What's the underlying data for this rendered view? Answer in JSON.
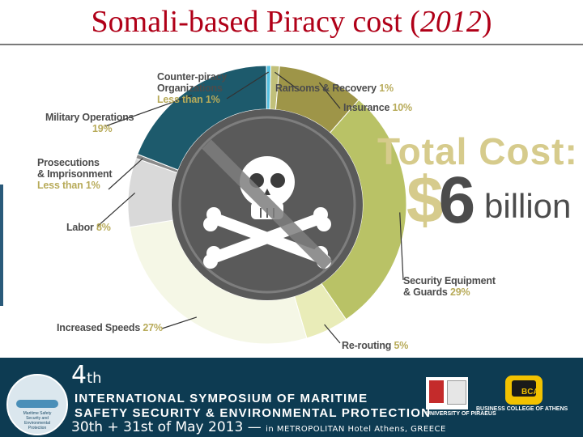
{
  "title": {
    "main": "Somali-based Piracy cost (",
    "year": "2012",
    "close": ")"
  },
  "chart_data": {
    "type": "pie",
    "title": "",
    "headline": {
      "label": "Total Cost:",
      "currency": "$",
      "amount": "6",
      "unit": "billion"
    },
    "categories": [
      "Ransoms & Recovery",
      "Insurance",
      "Security Equipment & Guards",
      "Re-routing",
      "Increased Speeds",
      "Labor",
      "Prosecutions & Imprisonment",
      "Military Operations",
      "Counter-piracy Organizations"
    ],
    "values": [
      1,
      10,
      29,
      5,
      27,
      8,
      0.5,
      19,
      0.5
    ],
    "value_labels": [
      "1%",
      "10%",
      "29%",
      "5%",
      "27%",
      "8%",
      "Less than 1%",
      "19%",
      "Less than 1%"
    ],
    "colors": [
      "#c1c07a",
      "#9e9548",
      "#b9c266",
      "#e9ecb8",
      "#f5f7e6",
      "#d9d9d9",
      "#8a8a8a",
      "#1d5a6c",
      "#54bfe0"
    ],
    "center_icon": "skull-and-crossbones-icon"
  },
  "labels": {
    "counter": {
      "l1": "Counter-piracy",
      "l2": "Organizations",
      "pct": "Less than 1%"
    },
    "ransoms": {
      "name": "Ransoms & Recovery",
      "pct": "1%"
    },
    "insurance": {
      "name": "Insurance",
      "pct": "10%"
    },
    "military": {
      "name": "Military Operations",
      "pct": "19%"
    },
    "prosecutions": {
      "l1": "Prosecutions",
      "l2": "& Imprisonment",
      "pct": "Less than 1%"
    },
    "labor": {
      "name": "Labor",
      "pct": "8%"
    },
    "security": {
      "l1": "Security Equipment",
      "l2": "& Guards",
      "pct": "29%"
    },
    "speeds": {
      "name": "Increased Speeds",
      "pct": "27%"
    },
    "rerouting": {
      "name": "Re-routing",
      "pct": "5%"
    }
  },
  "footer": {
    "edition": "4",
    "edition_suffix": "th",
    "line1": "INTERNATIONAL SYMPOSIUM OF MARITIME",
    "line2": "SAFETY SECURITY & ENVIRONMENTAL PROTECTION",
    "dates": "30th + 31st of May 2013 —",
    "venue": "in METROPOLITAN Hotel Athens, GREECE",
    "logo_left_text": "Maritime Safety Security and Environmental Protection",
    "logo_right1": "UNIVERSITY OF PIRAEUS",
    "logo_right2_mark": "BCA",
    "logo_right2": "BUSINESS COLLEGE OF ATHENS"
  },
  "colors": {
    "title": "#b00018",
    "footer_bg": "#0d3b52",
    "label_pct": "#b8ab5a"
  }
}
